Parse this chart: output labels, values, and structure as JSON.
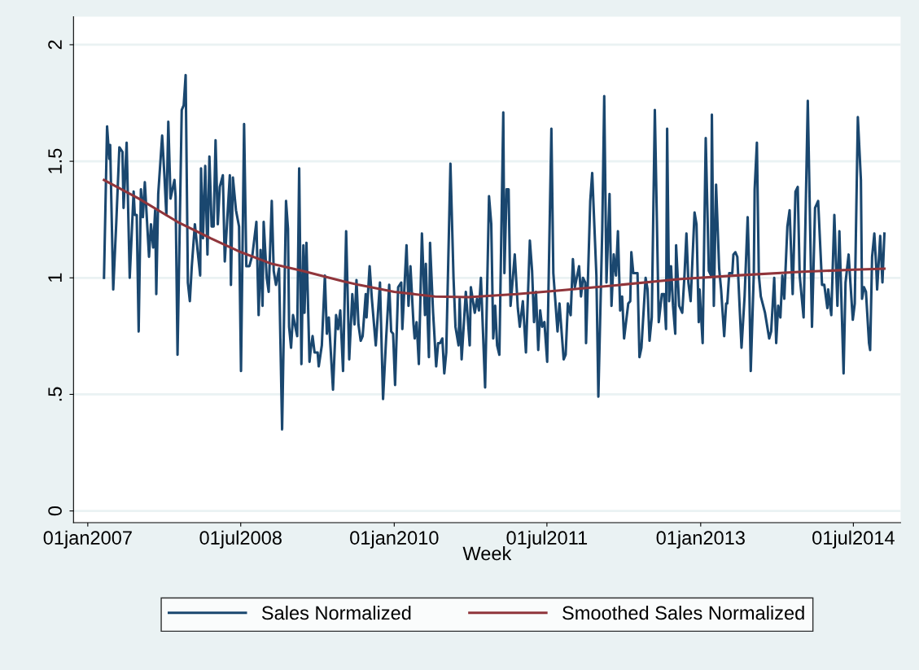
{
  "chart_data": {
    "type": "line",
    "xlabel": "Week",
    "xlim": [
      "2006-11-11",
      "2014-12-17"
    ],
    "ylim": [
      -0.05,
      2.12
    ],
    "xticks": [
      {
        "value": "2007-01-01",
        "label": "01jan2007"
      },
      {
        "value": "2008-07-01",
        "label": "01jul2008"
      },
      {
        "value": "2010-01-01",
        "label": "01jan2010"
      },
      {
        "value": "2011-07-01",
        "label": "01jul2011"
      },
      {
        "value": "2013-01-01",
        "label": "01jan2013"
      },
      {
        "value": "2014-07-01",
        "label": "01jul2014"
      }
    ],
    "yticks": [
      0,
      {
        "value": 0.5,
        "label": ".5"
      },
      1,
      1.5,
      2
    ],
    "grid": "y",
    "legend": "bottom",
    "marker": "none",
    "line_style": "solid",
    "series": [
      {
        "name": "Sales Normalized",
        "color": "#1a476f",
        "x": [
          "2007-02-28",
          "2007-03-11",
          "2007-03-19",
          "2007-03-22",
          "2007-04-02",
          "2007-04-13",
          "2007-04-24",
          "2007-05-05",
          "2007-05-09",
          "2007-05-20",
          "2007-05-31",
          "2007-06-14",
          "2007-06-18",
          "2007-06-25",
          "2007-07-02",
          "2007-07-10",
          "2007-07-17",
          "2007-07-24",
          "2007-08-08",
          "2007-08-15",
          "2007-08-23",
          "2007-08-30",
          "2007-09-03",
          "2007-09-10",
          "2007-09-24",
          "2007-10-02",
          "2007-10-09",
          "2007-10-16",
          "2007-10-24",
          "2007-11-07",
          "2007-11-11",
          "2007-11-18",
          "2007-12-03",
          "2007-12-10",
          "2007-12-17",
          "2007-12-25",
          "2008-01-01",
          "2008-01-08",
          "2008-01-19",
          "2008-02-07",
          "2008-02-10",
          "2008-02-17",
          "2008-02-25",
          "2008-03-04",
          "2008-03-11",
          "2008-03-19",
          "2008-03-26",
          "2008-04-02",
          "2008-04-10",
          "2008-04-17",
          "2008-04-28",
          "2008-05-05",
          "2008-05-23",
          "2008-05-27",
          "2008-06-03",
          "2008-06-14",
          "2008-06-25",
          "2008-07-02",
          "2008-07-13",
          "2008-07-21",
          "2008-08-01",
          "2008-08-12",
          "2008-08-26",
          "2008-09-03",
          "2008-09-10",
          "2008-09-17",
          "2008-09-21",
          "2008-10-02",
          "2008-10-09",
          "2008-10-20",
          "2008-10-27",
          "2008-11-04",
          "2008-11-15",
          "2008-11-26",
          "2008-12-10",
          "2008-12-17",
          "2008-12-21",
          "2008-12-28",
          "2009-01-04",
          "2009-01-19",
          "2009-01-26",
          "2009-02-03",
          "2009-02-10",
          "2009-02-14",
          "2009-02-21",
          "2009-03-04",
          "2009-03-08",
          "2009-03-15",
          "2009-03-22",
          "2009-04-02",
          "2009-04-06",
          "2009-04-17",
          "2009-04-28",
          "2009-05-05",
          "2009-05-12",
          "2009-05-27",
          "2009-06-07",
          "2009-06-14",
          "2009-06-22",
          "2009-07-02",
          "2009-07-13",
          "2009-07-24",
          "2009-08-04",
          "2009-08-12",
          "2009-08-19",
          "2009-08-26",
          "2009-09-03",
          "2009-09-10",
          "2009-09-21",
          "2009-09-24",
          "2009-10-05",
          "2009-10-13",
          "2009-10-27",
          "2009-11-11",
          "2009-11-22",
          "2009-12-03",
          "2009-12-14",
          "2009-12-21",
          "2009-12-28",
          "2010-01-04",
          "2010-01-15",
          "2010-01-26",
          "2010-01-30",
          "2010-02-14",
          "2010-02-21",
          "2010-02-28",
          "2010-03-11",
          "2010-03-15",
          "2010-03-22",
          "2010-03-30",
          "2010-04-10",
          "2010-04-21",
          "2010-04-24",
          "2010-05-05",
          "2010-05-09",
          "2010-05-20",
          "2010-05-23",
          "2010-05-31",
          "2010-06-07",
          "2010-06-14",
          "2010-06-22",
          "2010-06-29",
          "2010-07-06",
          "2010-07-21",
          "2010-08-01",
          "2010-08-08",
          "2010-08-19",
          "2010-08-23",
          "2010-08-30",
          "2010-09-14",
          "2010-09-28",
          "2010-10-02",
          "2010-10-16",
          "2010-10-24",
          "2010-10-31",
          "2010-11-07",
          "2010-11-22",
          "2010-12-06",
          "2010-12-14",
          "2010-12-21",
          "2010-12-28",
          "2011-01-04",
          "2011-01-12",
          "2011-01-26",
          "2011-01-30",
          "2011-02-07",
          "2011-02-14",
          "2011-02-21",
          "2011-03-08",
          "2011-03-19",
          "2011-03-26",
          "2011-04-06",
          "2011-04-17",
          "2011-05-01",
          "2011-05-09",
          "2011-05-16",
          "2011-05-23",
          "2011-05-31",
          "2011-06-07",
          "2011-06-14",
          "2011-06-22",
          "2011-07-02",
          "2011-07-17",
          "2011-07-24",
          "2011-08-08",
          "2011-08-15",
          "2011-08-30",
          "2011-09-06",
          "2011-09-14",
          "2011-09-24",
          "2011-10-02",
          "2011-10-09",
          "2011-10-24",
          "2011-10-31",
          "2011-11-07",
          "2011-11-15",
          "2011-11-18",
          "2011-12-03",
          "2011-12-10",
          "2011-12-25",
          "2012-01-01",
          "2012-01-15",
          "2012-01-22",
          "2012-01-30",
          "2012-02-10",
          "2012-02-17",
          "2012-02-25",
          "2012-03-04",
          "2012-03-11",
          "2012-03-19",
          "2012-03-26",
          "2012-04-02",
          "2012-04-17",
          "2012-04-24",
          "2012-04-28",
          "2012-05-05",
          "2012-05-12",
          "2012-05-20",
          "2012-05-27",
          "2012-06-03",
          "2012-06-18",
          "2012-06-25",
          "2012-07-02",
          "2012-07-10",
          "2012-07-21",
          "2012-08-04",
          "2012-08-15",
          "2012-08-23",
          "2012-08-30",
          "2012-09-03",
          "2012-09-10",
          "2012-09-17",
          "2012-09-24",
          "2012-10-02",
          "2012-10-05",
          "2012-10-16",
          "2012-10-27",
          "2012-11-04",
          "2012-11-11",
          "2012-11-18",
          "2012-11-26",
          "2012-12-10",
          "2012-12-17",
          "2012-12-25",
          "2012-12-28",
          "2013-01-08",
          "2013-01-19",
          "2013-01-30",
          "2013-02-07",
          "2013-02-10",
          "2013-02-17",
          "2013-02-25",
          "2013-03-08",
          "2013-03-15",
          "2013-03-26",
          "2013-04-02",
          "2013-04-06",
          "2013-04-13",
          "2013-04-24",
          "2013-04-28",
          "2013-05-05",
          "2013-05-12",
          "2013-05-27",
          "2013-06-07",
          "2013-06-18",
          "2013-06-22",
          "2013-06-29",
          "2013-07-10",
          "2013-07-13",
          "2013-07-21",
          "2013-07-28",
          "2013-08-04",
          "2013-08-19",
          "2013-09-03",
          "2013-09-10",
          "2013-09-21",
          "2013-09-28",
          "2013-10-05",
          "2013-10-13",
          "2013-10-20",
          "2013-10-27",
          "2013-11-07",
          "2013-11-15",
          "2013-11-26",
          "2013-12-06",
          "2013-12-14",
          "2013-12-21",
          "2014-01-04",
          "2014-01-19",
          "2014-02-03",
          "2014-02-14",
          "2014-02-25",
          "2014-03-11",
          "2014-03-19",
          "2014-03-30",
          "2014-04-02",
          "2014-04-13",
          "2014-04-24",
          "2014-05-05",
          "2014-05-12",
          "2014-05-27",
          "2014-06-03",
          "2014-06-14",
          "2014-06-29",
          "2014-07-06",
          "2014-07-17",
          "2014-07-28",
          "2014-08-01",
          "2014-08-08",
          "2014-08-15",
          "2014-08-26",
          "2014-08-30",
          "2014-09-06",
          "2014-09-14",
          "2014-09-21",
          "2014-09-24",
          "2014-10-05",
          "2014-10-13",
          "2014-10-20"
        ],
        "values": [
          1.0,
          1.65,
          1.51,
          1.57,
          0.95,
          1.24,
          1.56,
          1.54,
          1.3,
          1.58,
          1.0,
          1.37,
          1.27,
          1.27,
          0.77,
          1.38,
          1.26,
          1.41,
          1.09,
          1.23,
          1.13,
          1.29,
          0.93,
          1.36,
          1.61,
          1.44,
          1.27,
          1.67,
          1.34,
          1.42,
          1.35,
          0.67,
          1.72,
          1.74,
          1.87,
          0.98,
          0.9,
          1.05,
          1.23,
          1.01,
          1.47,
          1.17,
          1.48,
          1.1,
          1.52,
          1.22,
          1.22,
          1.59,
          1.23,
          1.39,
          1.44,
          1.07,
          1.44,
          0.97,
          1.43,
          1.29,
          1.22,
          0.6,
          1.66,
          1.05,
          1.05,
          1.1,
          1.24,
          0.84,
          1.12,
          0.88,
          1.24,
          1.0,
          0.94,
          1.33,
          1.03,
          0.97,
          1.04,
          0.35,
          1.33,
          1.21,
          0.79,
          0.7,
          0.84,
          0.75,
          1.47,
          0.63,
          1.14,
          0.85,
          1.15,
          0.64,
          0.69,
          0.75,
          0.68,
          0.68,
          0.62,
          0.71,
          1.01,
          0.76,
          0.83,
          0.52,
          0.84,
          0.78,
          0.86,
          0.6,
          1.2,
          0.65,
          0.93,
          0.8,
          0.99,
          0.8,
          0.73,
          0.75,
          0.93,
          0.83,
          1.05,
          0.91,
          0.71,
          0.98,
          0.48,
          0.74,
          0.97,
          0.77,
          0.76,
          0.54,
          0.96,
          0.98,
          0.78,
          1.14,
          0.88,
          1.05,
          0.8,
          0.74,
          0.81,
          0.63,
          1.19,
          0.84,
          1.06,
          0.66,
          1.15,
          0.85,
          0.79,
          0.62,
          0.72,
          0.72,
          0.74,
          0.59,
          0.68,
          1.49,
          1.0,
          0.79,
          0.71,
          0.91,
          0.65,
          0.94,
          0.71,
          0.96,
          0.85,
          0.91,
          0.86,
          1.0,
          0.53,
          1.35,
          1.23,
          0.74,
          0.88,
          0.71,
          0.67,
          1.71,
          1.02,
          1.38,
          1.38,
          0.88,
          1.1,
          0.87,
          0.79,
          0.9,
          0.68,
          1.16,
          1.03,
          0.81,
          0.94,
          0.69,
          0.86,
          0.79,
          0.81,
          0.64,
          1.64,
          1.02,
          0.77,
          0.89,
          0.65,
          0.67,
          0.89,
          0.84,
          1.08,
          0.96,
          1.05,
          0.92,
          1.0,
          0.98,
          0.72,
          1.33,
          1.45,
          1.01,
          0.49,
          1.21,
          1.78,
          0.98,
          1.36,
          0.88,
          1.1,
          1.01,
          1.2,
          0.86,
          0.92,
          0.74,
          0.89,
          0.9,
          1.11,
          1.02,
          1.02,
          1.02,
          0.66,
          0.7,
          1.0,
          0.95,
          0.73,
          0.83,
          1.72,
          0.81,
          0.93,
          0.93,
          0.78,
          1.64,
          0.9,
          1.05,
          0.88,
          0.76,
          1.14,
          0.88,
          0.85,
          1.01,
          1.19,
          0.98,
          0.9,
          1.28,
          1.23,
          0.81,
          0.95,
          0.72,
          1.6,
          1.03,
          1.01,
          1.7,
          0.88,
          1.4,
          1.04,
          0.95,
          0.75,
          0.89,
          0.89,
          1.02,
          1.02,
          1.1,
          1.11,
          1.09,
          0.7,
          0.92,
          1.26,
          1.09,
          0.6,
          1.02,
          1.38,
          1.58,
          1.01,
          0.92,
          0.85,
          0.74,
          0.77,
          1.0,
          0.72,
          0.88,
          0.83,
          1.01,
          0.91,
          1.22,
          1.29,
          0.93,
          1.37,
          1.39,
          1.01,
          0.83,
          1.76,
          0.79,
          1.3,
          1.33,
          0.97,
          0.97,
          0.87,
          0.95,
          0.84,
          1.27,
          0.88,
          1.2,
          0.59,
          0.98,
          1.1,
          0.82,
          0.89,
          1.69,
          1.42,
          0.91,
          0.96,
          0.94,
          0.72,
          0.69,
          1.09,
          1.19,
          1.04,
          0.95,
          1.18,
          0.98,
          1.19
        ]
      },
      {
        "name": "Smoothed Sales Normalized",
        "color": "#90353b",
        "x": [
          "2007-02-28",
          "2007-07-02",
          "2007-11-18",
          "2008-03-15",
          "2008-07-02",
          "2008-10-20",
          "2009-02-07",
          "2009-07-02",
          "2009-08-26",
          "2010-01-01",
          "2010-05-27",
          "2010-09-24",
          "2011-03-15",
          "2011-08-08",
          "2012-03-11",
          "2012-10-20",
          "2013-05-20",
          "2014-01-01",
          "2014-07-02",
          "2014-10-20"
        ],
        "values": [
          1.42,
          1.34,
          1.24,
          1.17,
          1.11,
          1.06,
          1.03,
          0.985,
          0.97,
          0.94,
          0.92,
          0.917,
          0.93,
          0.945,
          0.969,
          0.995,
          1.011,
          1.026,
          1.035,
          1.039
        ]
      }
    ]
  }
}
